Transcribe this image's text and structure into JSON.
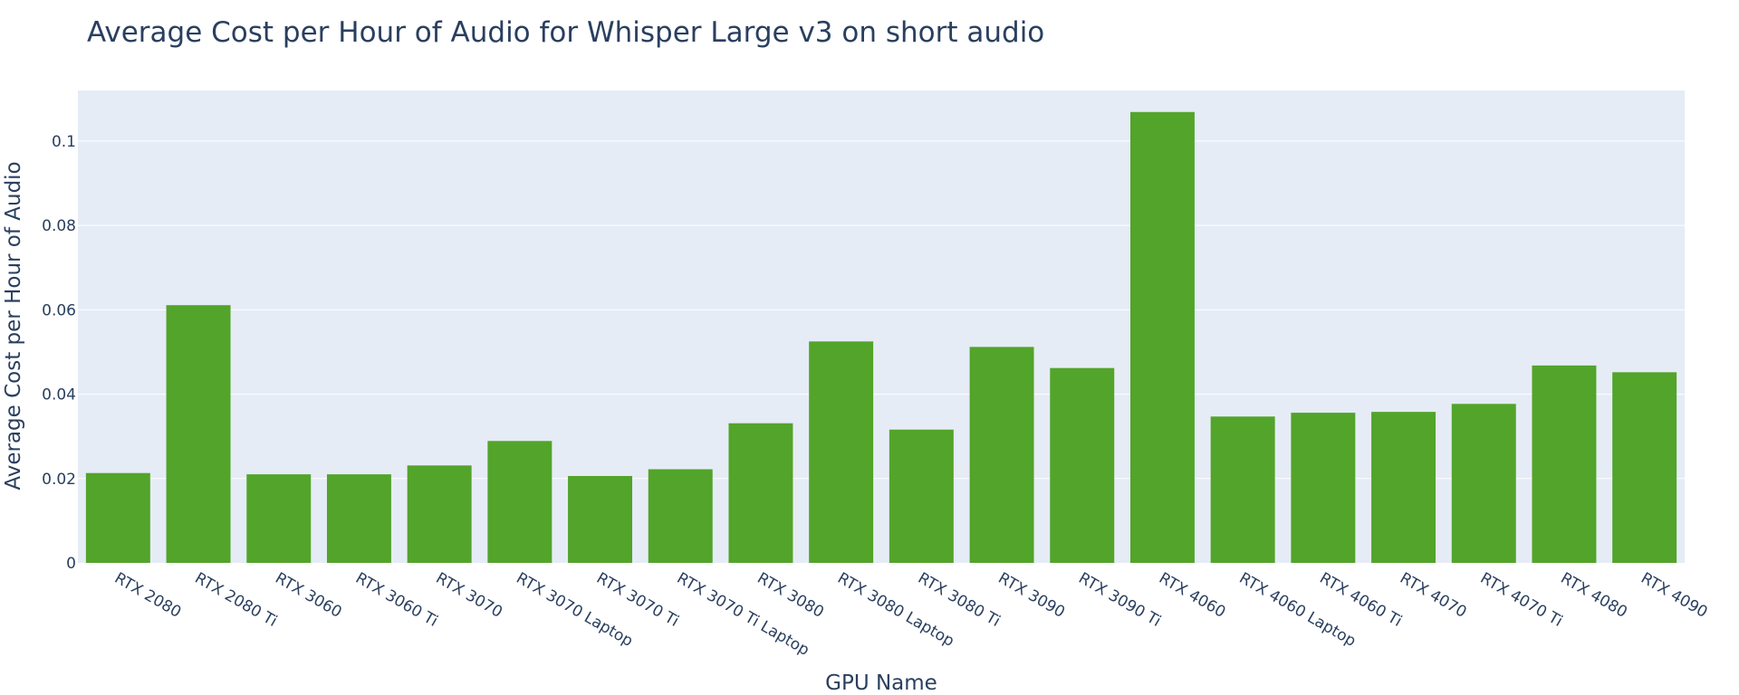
{
  "chart_data": {
    "type": "bar",
    "title": "Average Cost per Hour of Audio for Whisper Large v3 on short audio",
    "xlabel": "GPU Name",
    "ylabel": "Average Cost per Hour of Audio",
    "ylim": [
      0,
      0.112
    ],
    "yticks": [
      0,
      0.02,
      0.04,
      0.06,
      0.08,
      0.1
    ],
    "ytick_labels": [
      "0",
      "0.02",
      "0.04",
      "0.06",
      "0.08",
      "0.1"
    ],
    "grid": true,
    "legend": "none",
    "colors": {
      "bar": "#53a42a",
      "plot_bg": "#e5ecf6",
      "grid": "#ffffff",
      "text": "#2a3f5f"
    },
    "categories": [
      "RTX 2080",
      "RTX 2080 Ti",
      "RTX 3060",
      "RTX 3060 Ti",
      "RTX 3070",
      "RTX 3070 Laptop",
      "RTX 3070 Ti",
      "RTX 3070 Ti Laptop",
      "RTX 3080",
      "RTX 3080 Laptop",
      "RTX 3080 Ti",
      "RTX 3090",
      "RTX 3090 Ti",
      "RTX 4060",
      "RTX 4060 Laptop",
      "RTX 4060 Ti",
      "RTX 4070",
      "RTX 4070 Ti",
      "RTX 4080",
      "RTX 4090"
    ],
    "values": [
      0.0213,
      0.0611,
      0.021,
      0.021,
      0.0231,
      0.0289,
      0.0206,
      0.0222,
      0.0331,
      0.0525,
      0.0316,
      0.0512,
      0.0462,
      0.1069,
      0.0347,
      0.0356,
      0.0358,
      0.0377,
      0.0468,
      0.0452
    ]
  }
}
